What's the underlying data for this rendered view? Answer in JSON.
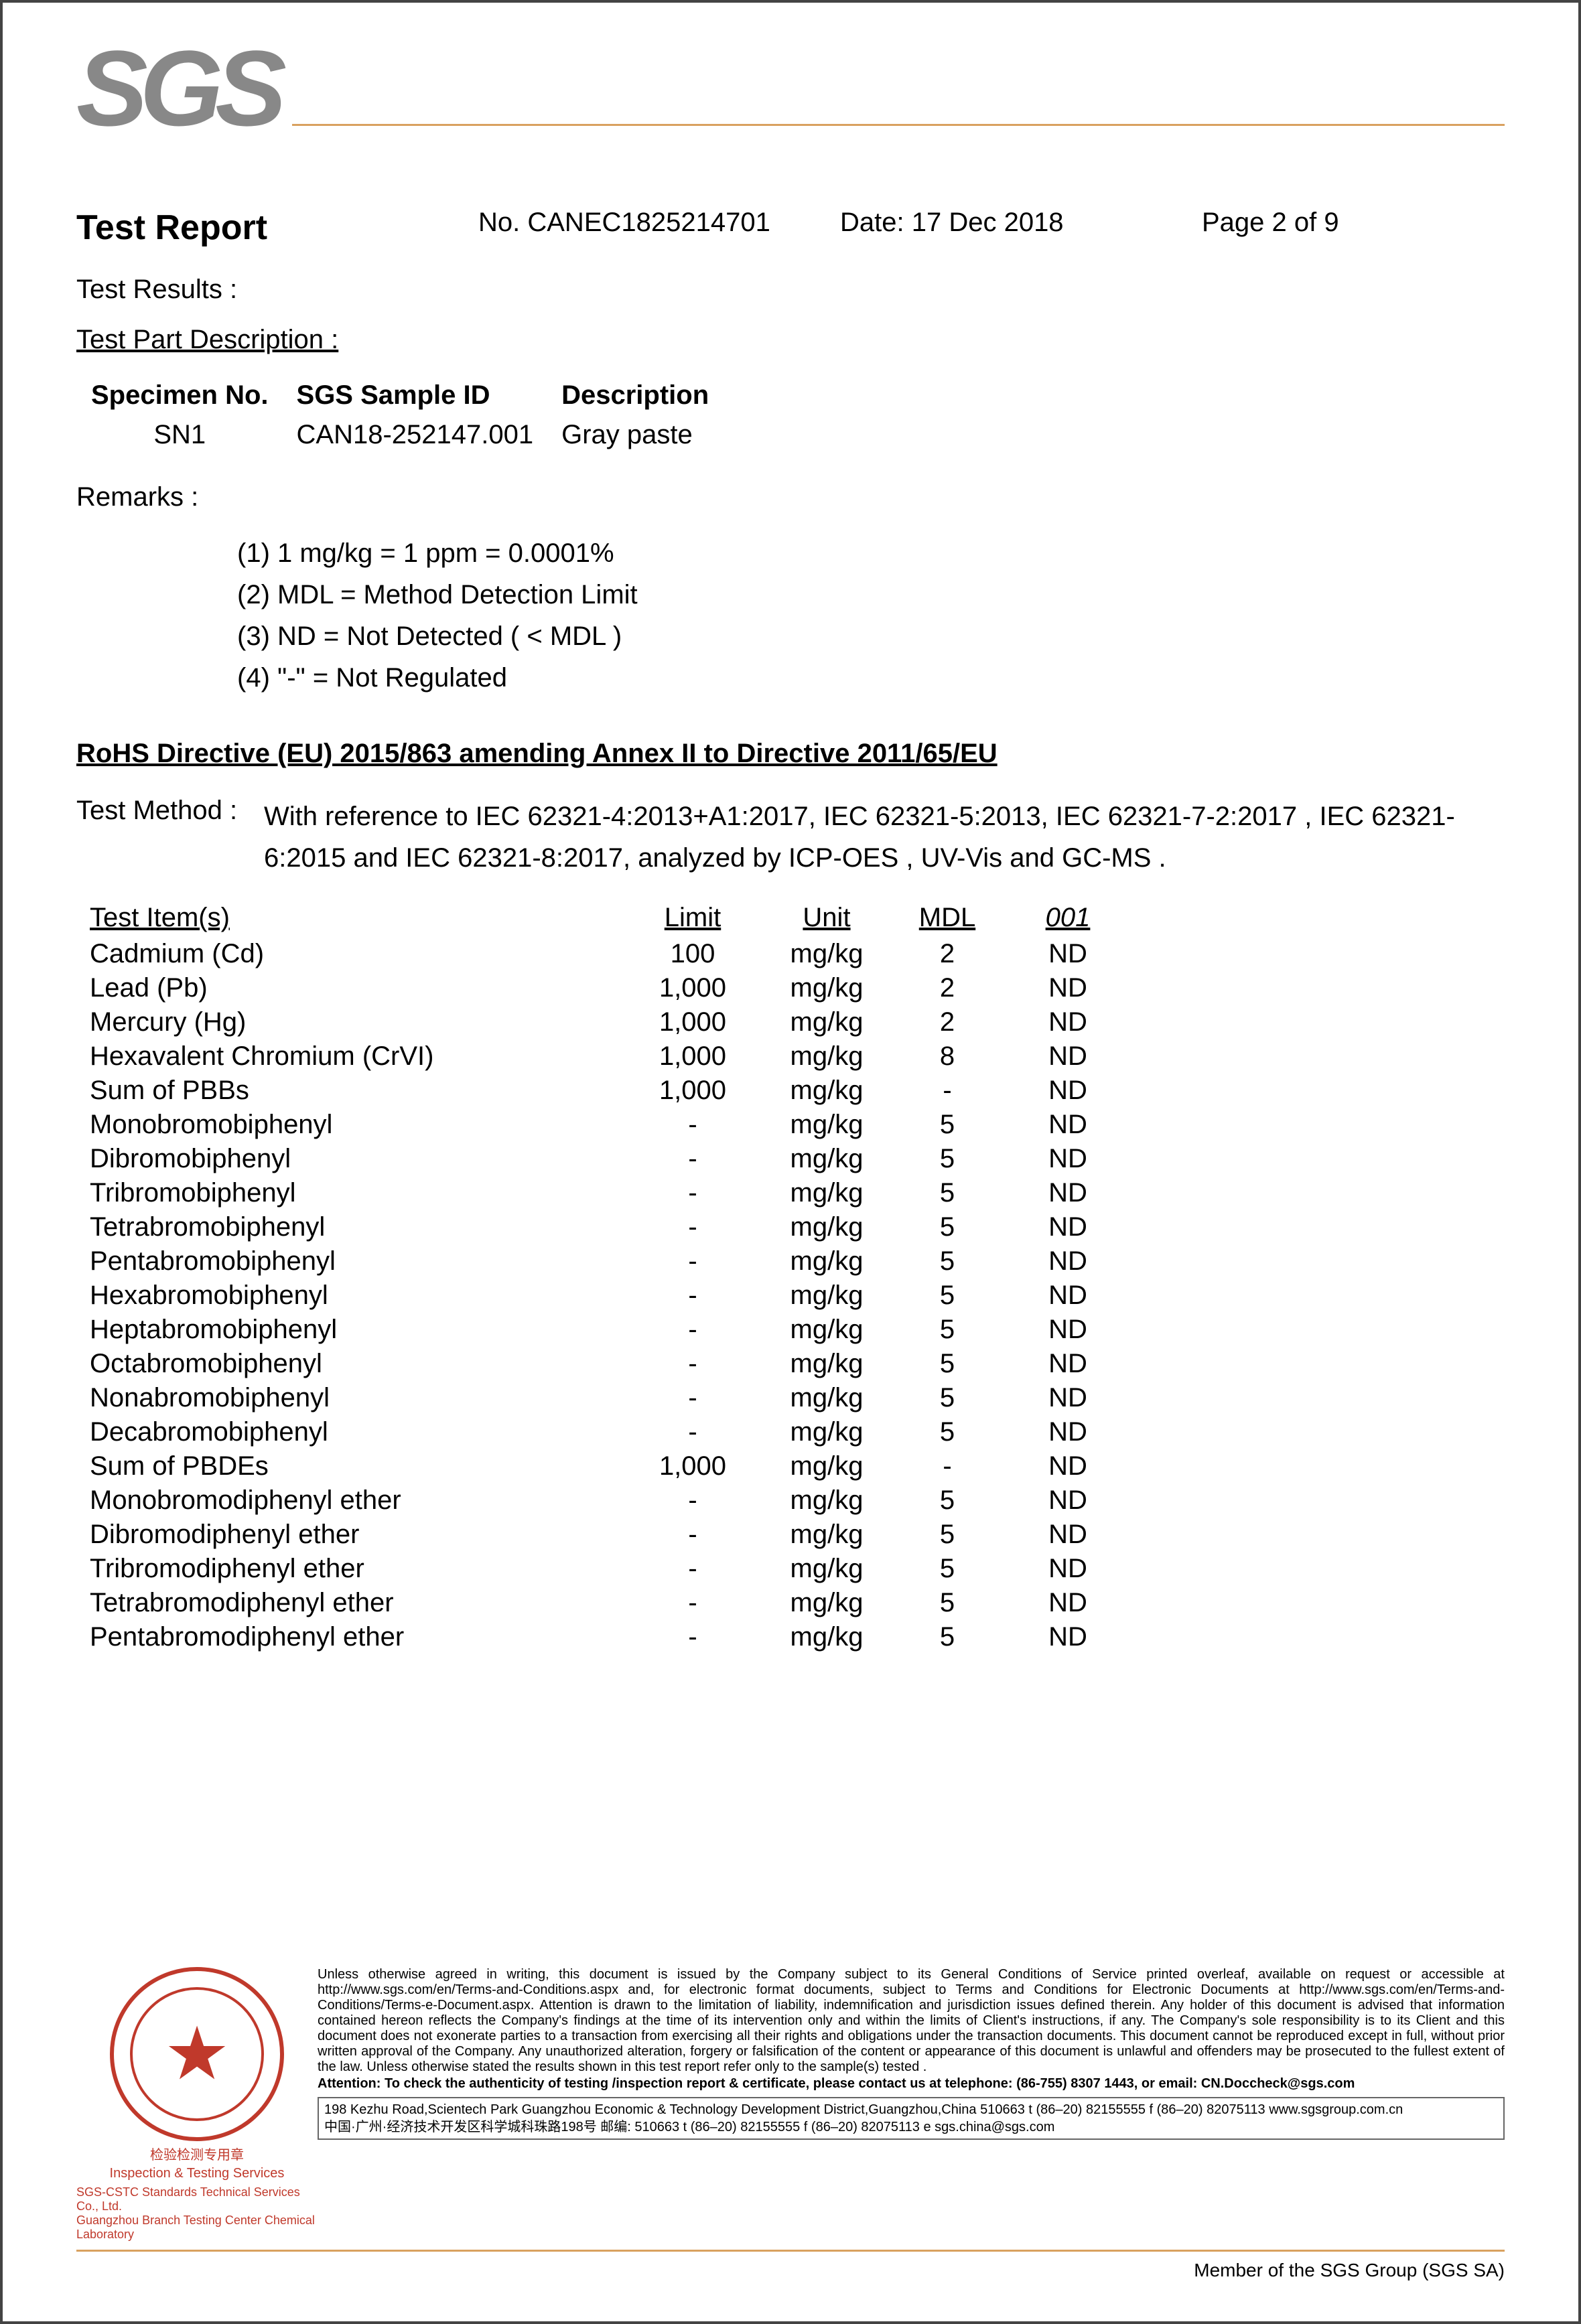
{
  "logo_text": "SGS",
  "header": {
    "title": "Test Report",
    "report_no_label": "No. ",
    "report_no": "CANEC1825214701",
    "date_label": "Date: ",
    "date": "17 Dec 2018",
    "page": "Page 2 of 9"
  },
  "labels": {
    "test_results": "Test Results :",
    "test_part_desc": "Test Part Description :",
    "remarks": "Remarks :",
    "directive": "RoHS Directive (EU) 2015/863 amending Annex II to Directive 2011/65/EU",
    "test_method_label": "Test Method :",
    "test_method_value": "With reference to IEC 62321-4:2013+A1:2017, IEC 62321-5:2013,  IEC 62321-7-2:2017 , IEC 62321-6:2015  and IEC 62321-8:2017,  analyzed by ICP-OES , UV-Vis  and GC-MS ."
  },
  "part_desc": {
    "headers": [
      "Specimen No.",
      "SGS Sample ID",
      "Description"
    ],
    "rows": [
      [
        "SN1",
        "CAN18-252147.001",
        "Gray paste"
      ]
    ]
  },
  "remarks": [
    "(1) 1 mg/kg = 1 ppm = 0.0001%",
    "(2) MDL = Method Detection Limit",
    "(3) ND = Not Detected ( < MDL )",
    "(4) \"-\" = Not Regulated"
  ],
  "results_table": {
    "headers": [
      "Test Item(s)",
      "Limit",
      "Unit",
      "MDL",
      "001"
    ],
    "rows": [
      [
        "Cadmium (Cd)",
        "100",
        "mg/kg",
        "2",
        "ND"
      ],
      [
        "Lead (Pb)",
        "1,000",
        "mg/kg",
        "2",
        "ND"
      ],
      [
        "Mercury (Hg)",
        "1,000",
        "mg/kg",
        "2",
        "ND"
      ],
      [
        "Hexavalent Chromium (CrVI)",
        "1,000",
        "mg/kg",
        "8",
        "ND"
      ],
      [
        "Sum of PBBs",
        "1,000",
        "mg/kg",
        "-",
        "ND"
      ],
      [
        "Monobromobiphenyl",
        "-",
        "mg/kg",
        "5",
        "ND"
      ],
      [
        "Dibromobiphenyl",
        "-",
        "mg/kg",
        "5",
        "ND"
      ],
      [
        "Tribromobiphenyl",
        "-",
        "mg/kg",
        "5",
        "ND"
      ],
      [
        "Tetrabromobiphenyl",
        "-",
        "mg/kg",
        "5",
        "ND"
      ],
      [
        "Pentabromobiphenyl",
        "-",
        "mg/kg",
        "5",
        "ND"
      ],
      [
        "Hexabromobiphenyl",
        "-",
        "mg/kg",
        "5",
        "ND"
      ],
      [
        "Heptabromobiphenyl",
        "-",
        "mg/kg",
        "5",
        "ND"
      ],
      [
        "Octabromobiphenyl",
        "-",
        "mg/kg",
        "5",
        "ND"
      ],
      [
        "Nonabromobiphenyl",
        "-",
        "mg/kg",
        "5",
        "ND"
      ],
      [
        "Decabromobiphenyl",
        "-",
        "mg/kg",
        "5",
        "ND"
      ],
      [
        "Sum of PBDEs",
        "1,000",
        "mg/kg",
        "-",
        "ND"
      ],
      [
        "Monobromodiphenyl ether",
        "-",
        "mg/kg",
        "5",
        "ND"
      ],
      [
        "Dibromodiphenyl ether",
        "-",
        "mg/kg",
        "5",
        "ND"
      ],
      [
        "Tribromodiphenyl ether",
        "-",
        "mg/kg",
        "5",
        "ND"
      ],
      [
        "Tetrabromodiphenyl ether",
        "-",
        "mg/kg",
        "5",
        "ND"
      ],
      [
        "Pentabromodiphenyl ether",
        "-",
        "mg/kg",
        "5",
        "ND"
      ]
    ]
  },
  "footer": {
    "stamp_company_top": "SGS-CSTC Standards Technical Services Co., Ltd.",
    "stamp_company_bottom": "Guangzhou Branch Testing Center Chemical Laboratory",
    "stamp_cn": "检验检测专用章",
    "stamp_its": "Inspection & Testing Services",
    "legal": "Unless otherwise agreed in writing, this document is issued by the Company subject to its General Conditions of Service printed overleaf, available on request or accessible at http://www.sgs.com/en/Terms-and-Conditions.aspx and, for electronic format documents, subject to Terms and Conditions for Electronic Documents at http://www.sgs.com/en/Terms-and-Conditions/Terms-e-Document.aspx. Attention is drawn to the limitation of liability, indemnification and jurisdiction issues defined therein. Any holder of this document is advised that information contained hereon reflects the Company's findings at the time of its intervention only and within the limits of Client's instructions, if any. The Company's sole responsibility is to its Client and this document does not exonerate parties to a transaction from exercising all their rights and obligations under the transaction documents. This document cannot be reproduced except in full, without prior written approval of the Company. Any unauthorized alteration, forgery or falsification of the content or appearance of this document is unlawful and offenders may be prosecuted to the fullest extent of the law. Unless otherwise stated the results shown in this test report refer only to the sample(s) tested .",
    "attention": "Attention: To check the authenticity of testing /inspection report & certificate, please contact us at telephone: (86-755) 8307 1443, or email: CN.Doccheck@sgs.com",
    "addr_en": "198 Kezhu Road,Scientech Park Guangzhou Economic & Technology Development District,Guangzhou,China 510663   t (86–20) 82155555   f (86–20) 82075113   www.sgsgroup.com.cn",
    "addr_cn": "中国·广州·经济技术开发区科学城科珠路198号        邮编: 510663   t (86–20) 82155555   f (86–20) 82075113   e sgs.china@sgs.com",
    "member": "Member of the SGS Group (SGS SA)"
  }
}
